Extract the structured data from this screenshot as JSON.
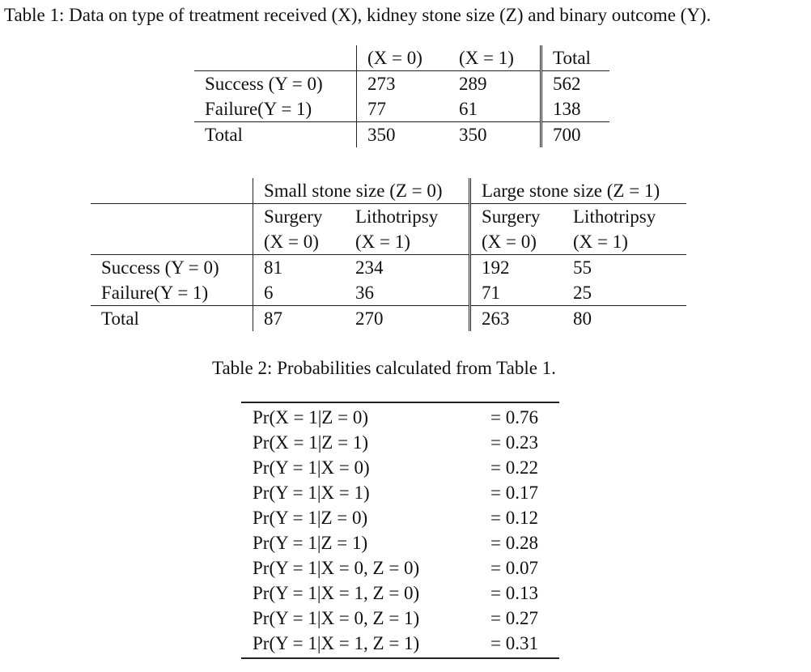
{
  "captions": {
    "table1": "Table 1: Data on type of treatment received (X), kidney stone size (Z) and binary outcome (Y).",
    "table2": "Table 2: Probabilities calculated from Table 1."
  },
  "table1a": {
    "header": [
      "(X = 0)",
      "(X = 1)",
      "Total"
    ],
    "rows": [
      {
        "label": "Success (Y = 0)",
        "x0": "273",
        "x1": "289",
        "total": "562"
      },
      {
        "label": "Failure(Y = 1)",
        "x0": "77",
        "x1": "61",
        "total": "138"
      },
      {
        "label": "Total",
        "x0": "350",
        "x1": "350",
        "total": "700"
      }
    ]
  },
  "table1b": {
    "group_small": "Small stone size (Z = 0)",
    "group_large": "Large stone size (Z = 1)",
    "sub_header_1": [
      "Surgery",
      "Lithotripsy",
      "Surgery",
      "Lithotripsy"
    ],
    "sub_header_2": [
      "(X = 0)",
      "(X = 1)",
      "(X = 0)",
      "(X = 1)"
    ],
    "rows": [
      {
        "label": "Success (Y = 0)",
        "values": [
          "81",
          "234",
          "192",
          "55"
        ]
      },
      {
        "label": "Failure(Y = 1)",
        "values": [
          "6",
          "36",
          "71",
          "25"
        ]
      },
      {
        "label": "Total",
        "values": [
          "87",
          "270",
          "263",
          "80"
        ]
      }
    ]
  },
  "table2": {
    "rows": [
      {
        "expr": "Pr(X = 1|Z = 0)",
        "value": "= 0.76"
      },
      {
        "expr": "Pr(X = 1|Z = 1)",
        "value": "= 0.23"
      },
      {
        "expr": "Pr(Y = 1|X = 0)",
        "value": "= 0.22"
      },
      {
        "expr": "Pr(Y = 1|X = 1)",
        "value": "= 0.17"
      },
      {
        "expr": "Pr(Y = 1|Z = 0)",
        "value": "= 0.12"
      },
      {
        "expr": "Pr(Y = 1|Z = 1)",
        "value": "= 0.28"
      },
      {
        "expr": "Pr(Y = 1|X = 0, Z = 0)",
        "value": "= 0.07"
      },
      {
        "expr": "Pr(Y = 1|X = 1, Z = 0)",
        "value": "= 0.13"
      },
      {
        "expr": "Pr(Y = 1|X = 0, Z = 1)",
        "value": "= 0.27"
      },
      {
        "expr": "Pr(Y = 1|X = 1, Z = 1)",
        "value": "= 0.31"
      }
    ]
  }
}
